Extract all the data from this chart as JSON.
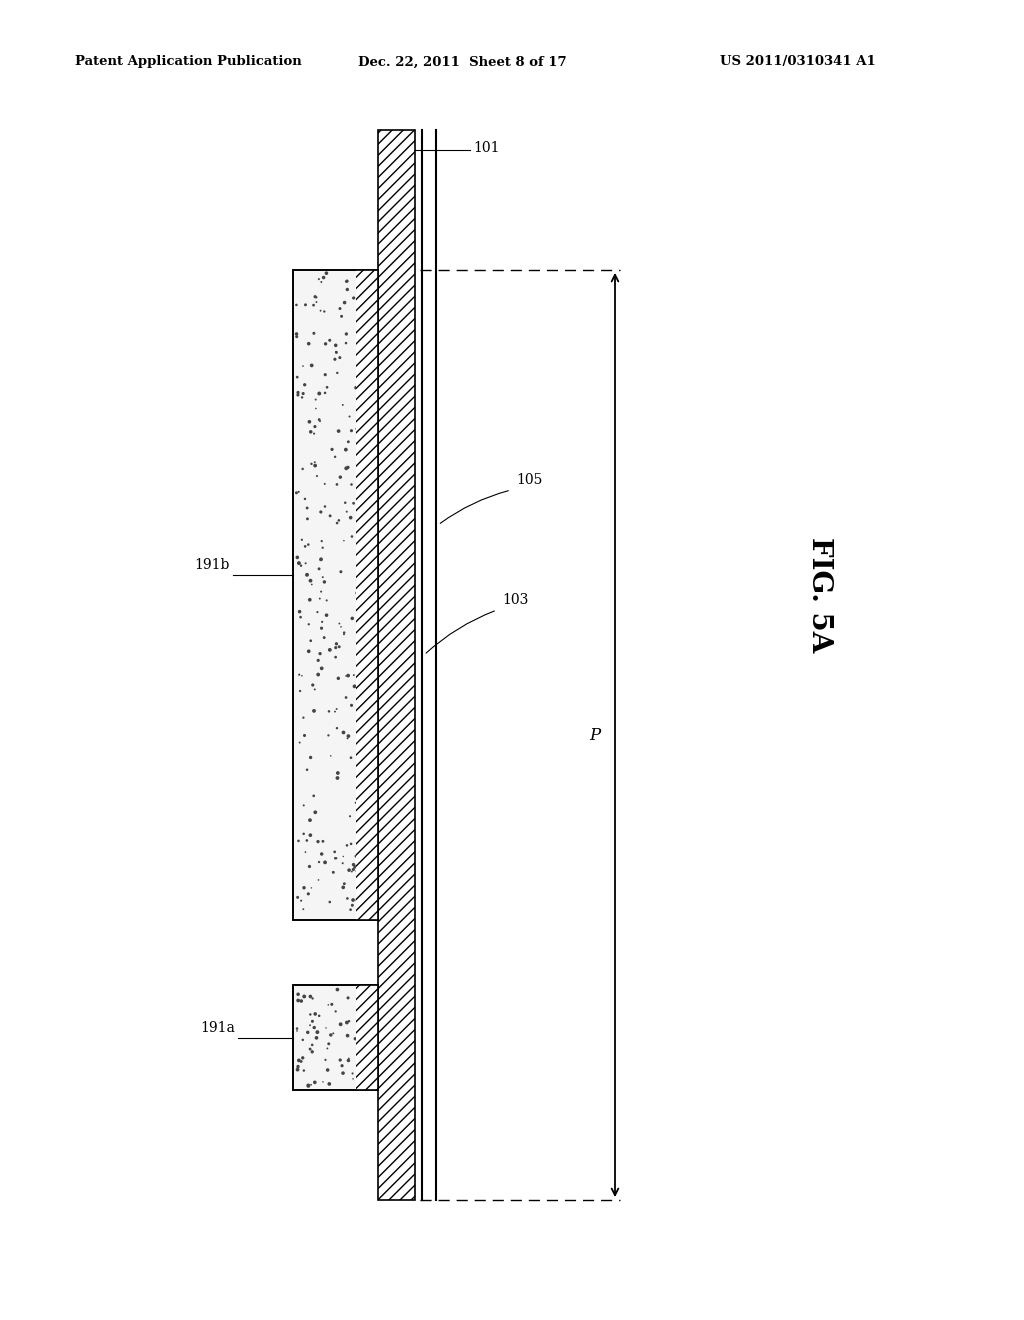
{
  "header_left": "Patent Application Publication",
  "header_mid": "Dec. 22, 2011  Sheet 8 of 17",
  "header_right": "US 2011/0310341 A1",
  "fig_label": "FIG. 5A",
  "label_101": "101",
  "label_191b": "191b",
  "label_191a": "191a",
  "label_105": "105",
  "label_103": "103",
  "label_P": "P",
  "bg_color": "#ffffff",
  "line_color": "#000000"
}
